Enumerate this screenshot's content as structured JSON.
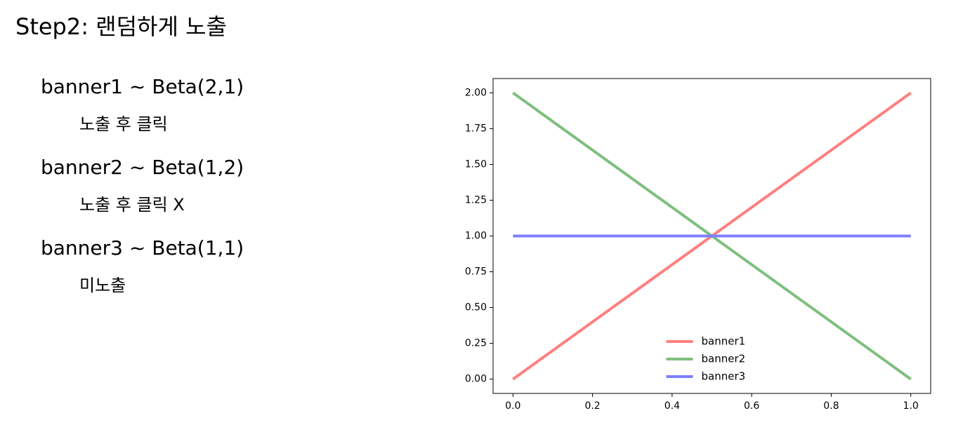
{
  "title": "Step2: 랜덤하게 노출",
  "items": [
    {
      "label": "banner1 ~ Beta(2,1)",
      "note": "노출 후 클릭"
    },
    {
      "label": "banner2 ~ Beta(1,2)",
      "note": "노출 후 클릭 X"
    },
    {
      "label": "banner3 ~ Beta(1,1)",
      "note": "미노출"
    }
  ],
  "chart_data": {
    "type": "line",
    "x": [
      0,
      1
    ],
    "series": [
      {
        "name": "banner1",
        "color": "#ff7f7f",
        "values": [
          0,
          2
        ]
      },
      {
        "name": "banner2",
        "color": "#7fbf7f",
        "values": [
          2,
          0
        ]
      },
      {
        "name": "banner3",
        "color": "#7f7fff",
        "values": [
          1,
          1
        ]
      }
    ],
    "xlim": [
      -0.05,
      1.05
    ],
    "ylim": [
      -0.1,
      2.1
    ],
    "xticks": [
      {
        "value": 0,
        "label": "0.0"
      },
      {
        "value": 0.2,
        "label": "0.2"
      },
      {
        "value": 0.4,
        "label": "0.4"
      },
      {
        "value": 0.6,
        "label": "0.6"
      },
      {
        "value": 0.8,
        "label": "0.8"
      },
      {
        "value": 1,
        "label": "1.0"
      }
    ],
    "yticks": [
      {
        "value": 0,
        "label": "0.00"
      },
      {
        "value": 0.25,
        "label": "0.25"
      },
      {
        "value": 0.5,
        "label": "0.50"
      },
      {
        "value": 0.75,
        "label": "0.75"
      },
      {
        "value": 1,
        "label": "1.00"
      },
      {
        "value": 1.25,
        "label": "1.25"
      },
      {
        "value": 1.5,
        "label": "1.50"
      },
      {
        "value": 1.75,
        "label": "1.75"
      },
      {
        "value": 2,
        "label": "2.00"
      }
    ],
    "legend": "lower center"
  }
}
